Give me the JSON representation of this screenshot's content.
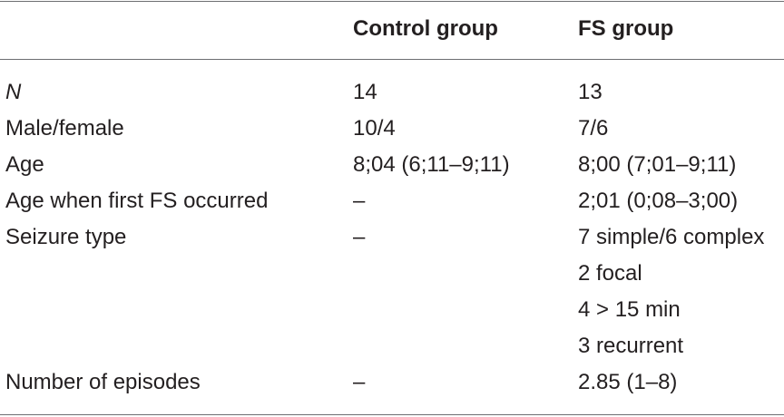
{
  "table": {
    "headers": [
      "",
      "Control group",
      "FS group"
    ],
    "rows": [
      {
        "label": "N",
        "control": "14",
        "fs": "13"
      },
      {
        "label": "Male/female",
        "control": "10/4",
        "fs": "7/6"
      },
      {
        "label": "Age",
        "control": "8;04 (6;11–9;11)",
        "fs": "8;00 (7;01–9;11)"
      },
      {
        "label": "Age when first FS occurred",
        "control": "–",
        "fs": "2;01 (0;08–3;00)"
      },
      {
        "label": "Seizure type",
        "control": "–",
        "fs": "7 simple/6 complex"
      },
      {
        "label": "",
        "control": "",
        "fs": "2 focal"
      },
      {
        "label": "",
        "control": "",
        "fs": "4 > 15 min"
      },
      {
        "label": "",
        "control": "",
        "fs": "3 recurrent"
      },
      {
        "label": "Number of episodes",
        "control": "–",
        "fs": "2.85 (1–8)"
      }
    ]
  }
}
